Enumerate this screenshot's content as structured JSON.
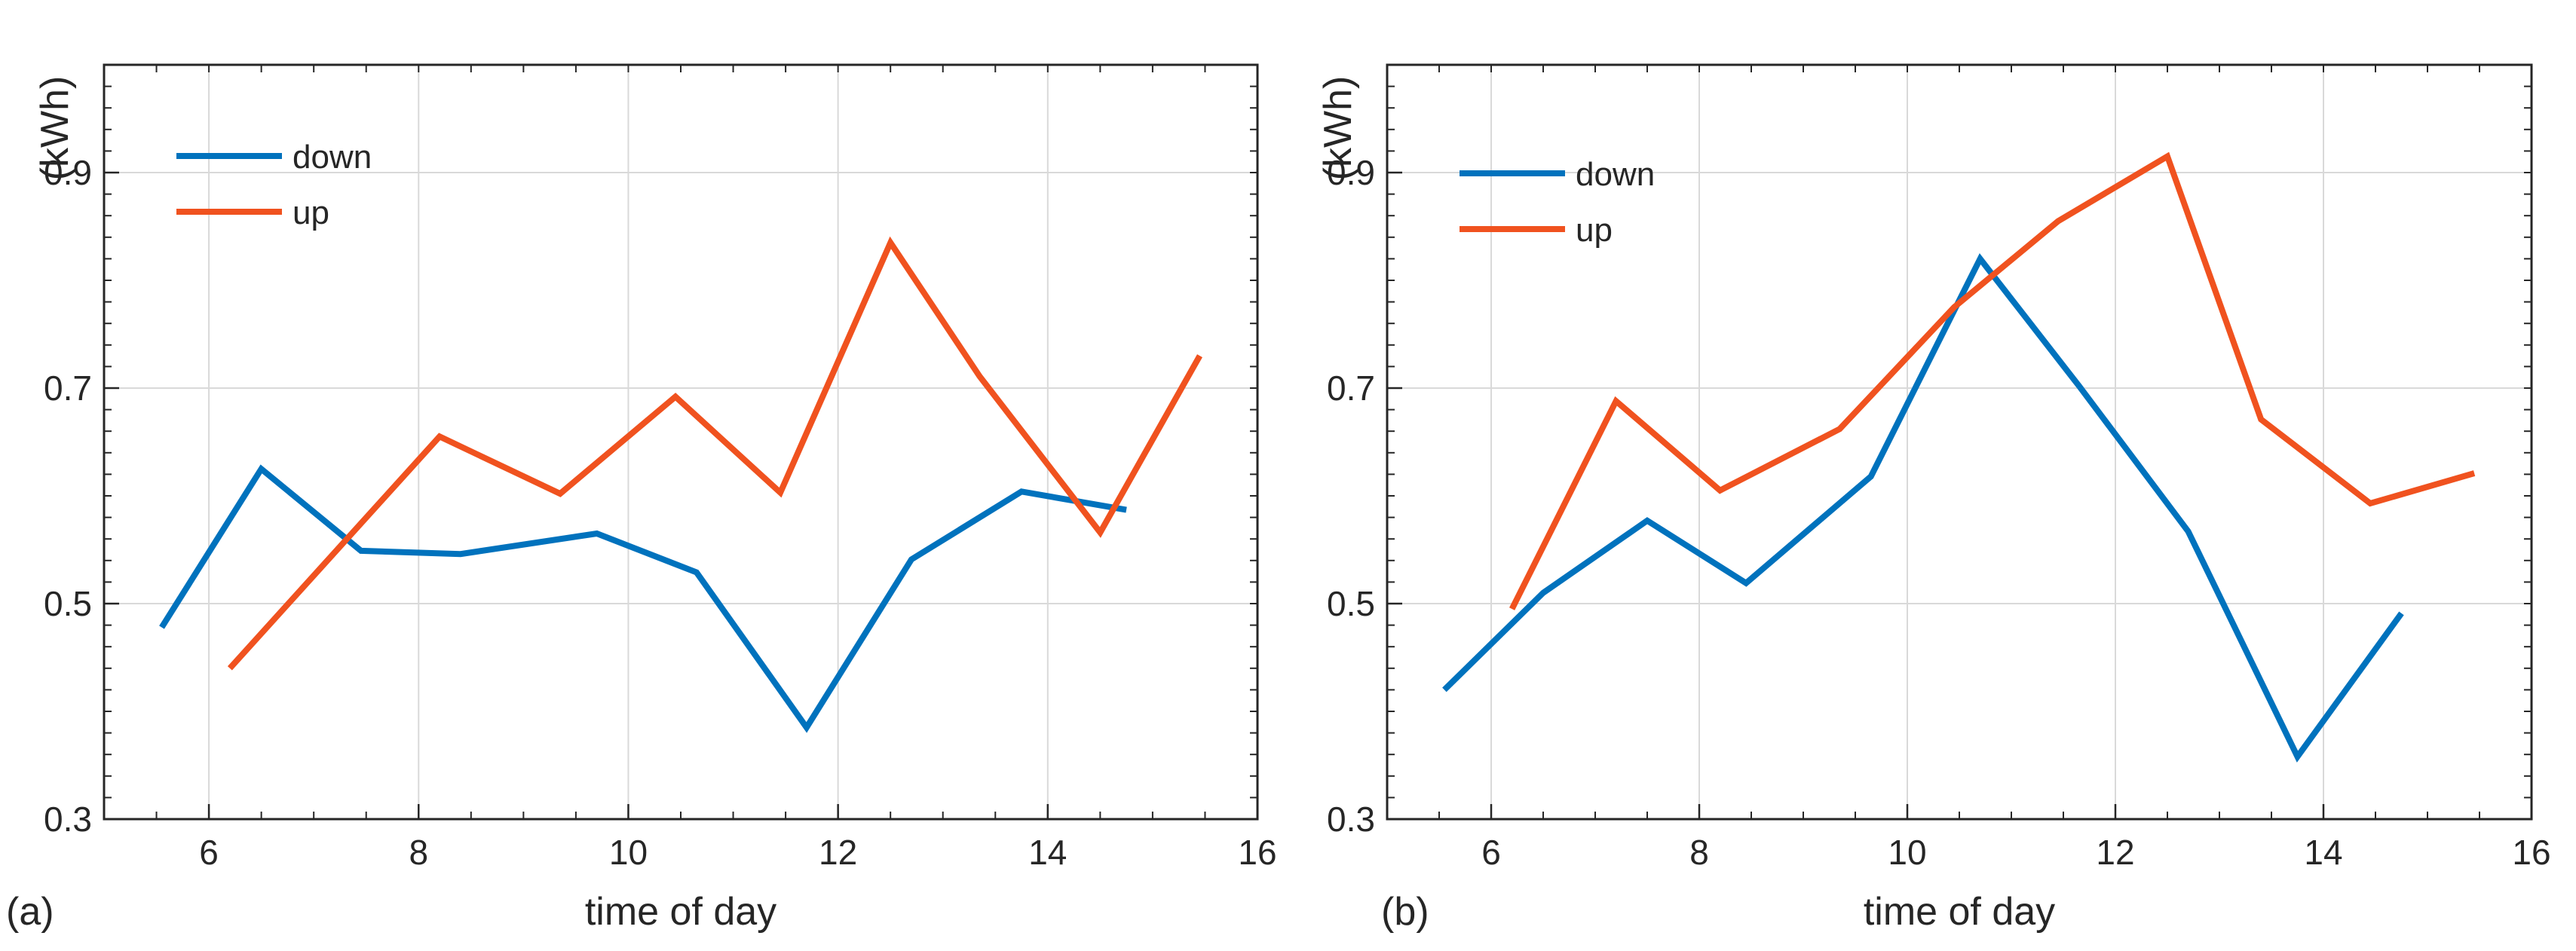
{
  "chart_data": [
    {
      "type": "line",
      "panel_label": "(a)",
      "xlabel": "time of day",
      "ylabel": "(kWh)",
      "xlim": [
        5,
        16
      ],
      "ylim": [
        0.3,
        1.0
      ],
      "xticks": [
        6,
        8,
        10,
        12,
        14,
        16
      ],
      "yticks": [
        0.3,
        0.5,
        0.7,
        0.9
      ],
      "xtick_labels": [
        "6",
        "8",
        "10",
        "12",
        "14",
        "16"
      ],
      "ytick_labels": [
        "0.3",
        "0.5",
        "0.7",
        "0.9"
      ],
      "grid": true,
      "legend_position": "top-left",
      "series": [
        {
          "name": "down",
          "color": "#0072BD",
          "x": [
            5.55,
            6.5,
            7.45,
            8.4,
            9.7,
            10.65,
            11.7,
            12.7,
            13.75,
            14.75
          ],
          "y": [
            0.478,
            0.625,
            0.549,
            0.546,
            0.565,
            0.529,
            0.385,
            0.541,
            0.604,
            0.587
          ]
        },
        {
          "name": "up",
          "color": "#F0521F",
          "x": [
            6.2,
            8.2,
            9.35,
            10.45,
            11.45,
            12.5,
            13.35,
            14.5,
            15.45
          ],
          "y": [
            0.44,
            0.655,
            0.602,
            0.692,
            0.603,
            0.835,
            0.711,
            0.566,
            0.73
          ]
        }
      ]
    },
    {
      "type": "line",
      "panel_label": "(b)",
      "xlabel": "time of day",
      "ylabel": "(kWh)",
      "xlim": [
        5,
        16
      ],
      "ylim": [
        0.3,
        1.0
      ],
      "xticks": [
        6,
        8,
        10,
        12,
        14,
        16
      ],
      "yticks": [
        0.3,
        0.5,
        0.7,
        0.9
      ],
      "xtick_labels": [
        "6",
        "8",
        "10",
        "12",
        "14",
        "16"
      ],
      "ytick_labels": [
        "0.3",
        "0.5",
        "0.7",
        "0.9"
      ],
      "grid": true,
      "legend_position": "top-left",
      "series": [
        {
          "name": "down",
          "color": "#0072BD",
          "x": [
            5.55,
            6.5,
            7.5,
            8.45,
            9.65,
            10.7,
            11.65,
            12.7,
            13.75,
            14.75
          ],
          "y": [
            0.42,
            0.51,
            0.577,
            0.519,
            0.618,
            0.82,
            0.702,
            0.567,
            0.358,
            0.491
          ]
        },
        {
          "name": "up",
          "color": "#F0521F",
          "x": [
            6.2,
            7.2,
            8.2,
            9.35,
            10.45,
            11.45,
            12.5,
            13.4,
            14.45,
            15.45
          ],
          "y": [
            0.495,
            0.688,
            0.605,
            0.662,
            0.775,
            0.855,
            0.915,
            0.671,
            0.593,
            0.621
          ]
        }
      ]
    }
  ]
}
